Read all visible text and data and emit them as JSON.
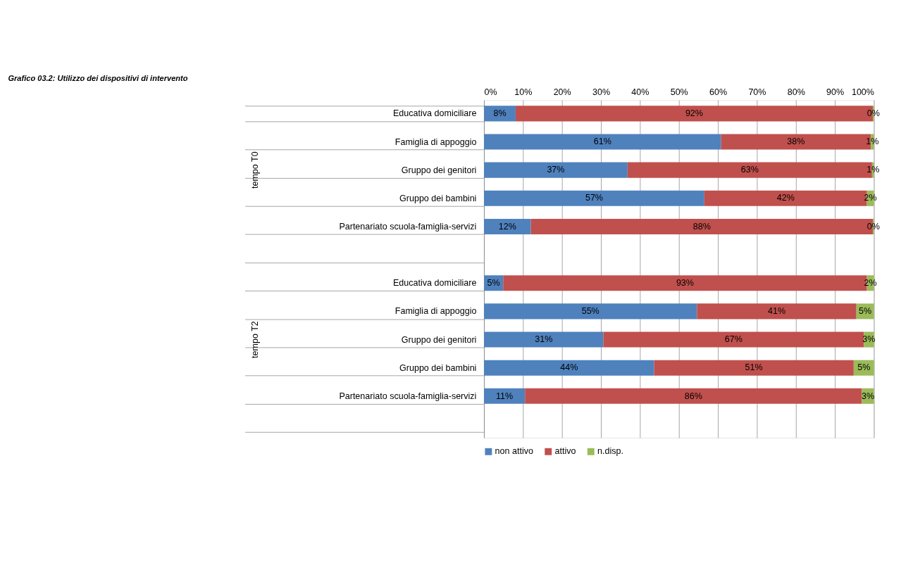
{
  "chart_data": {
    "type": "bar",
    "orientation": "horizontal",
    "stacked": true,
    "title": "Grafico 03.2: Utilizzo dei dispositivi di intervento",
    "categories": [
      "Educativa domiciliare",
      "Famiglia di appoggio",
      "Gruppo dei genitori",
      "Gruppo dei bambini",
      "Partenariato scuola-famiglia-servizi",
      null,
      "Educativa domiciliare",
      "Famiglia di appoggio",
      "Gruppo dei genitori",
      "Gruppo dei bambini",
      "Partenariato scuola-famiglia-servizi",
      null
    ],
    "series": [
      {
        "name": "non attivo",
        "color": "#4f81bd",
        "values": [
          8.1,
          60.8,
          36.8,
          56.5,
          12.0,
          null,
          4.9,
          54.6,
          30.6,
          43.6,
          10.5,
          null
        ],
        "value_labels": [
          "8%",
          "61%",
          "37%",
          "57%",
          "12%",
          null,
          "5%",
          "55%",
          "31%",
          "44%",
          "11%",
          null
        ]
      },
      {
        "name": "attivo",
        "color": "#c0504d",
        "values": [
          91.6,
          38.4,
          62.7,
          41.7,
          87.7,
          null,
          93.3,
          40.9,
          66.8,
          51.2,
          86.4,
          null
        ],
        "value_labels": [
          "92%",
          "38%",
          "63%",
          "42%",
          "88%",
          null,
          "93%",
          "41%",
          "67%",
          "51%",
          "86%",
          null
        ]
      },
      {
        "name": "n.disp.",
        "color": "#9bbb59",
        "values": [
          0.3,
          0.8,
          0.5,
          1.8,
          0.3,
          null,
          1.8,
          4.5,
          2.6,
          5.2,
          3.1,
          null
        ],
        "value_labels": [
          "0%",
          "1%",
          "1%",
          "2%",
          "0%",
          null,
          "2%",
          "5%",
          "3%",
          "5%",
          "3%",
          null
        ]
      }
    ],
    "xlim": [
      0,
      100
    ],
    "xticks": [
      {
        "value": 0,
        "label": "0%"
      },
      {
        "value": 10,
        "label": "10%"
      },
      {
        "value": 20,
        "label": "20%"
      },
      {
        "value": 30,
        "label": "30%"
      },
      {
        "value": 40,
        "label": "40%"
      },
      {
        "value": 50,
        "label": "50%"
      },
      {
        "value": 60,
        "label": "60%"
      },
      {
        "value": 70,
        "label": "70%"
      },
      {
        "value": 80,
        "label": "80%"
      },
      {
        "value": 90,
        "label": "90%"
      },
      {
        "value": 100,
        "label": "100%"
      }
    ],
    "annotations": [
      "tempo T0",
      "tempo T2"
    ],
    "grid": "x",
    "legend": "bottom"
  }
}
